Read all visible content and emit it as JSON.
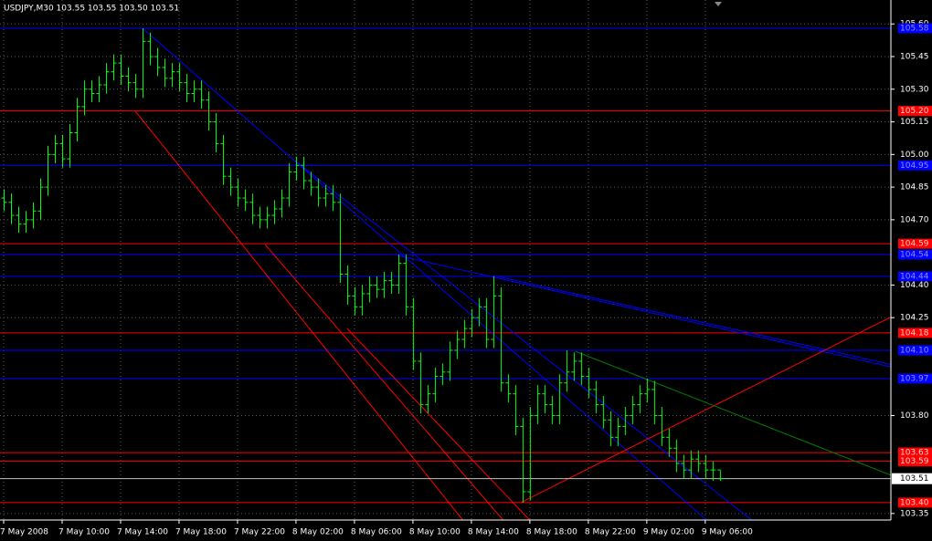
{
  "chart_data": {
    "type": "ohlc",
    "title": "USDJPY,M30  103.55 103.55 103.50 103.51",
    "color": "#00ff00",
    "grid": true,
    "ylim": [
      103.32,
      105.71
    ],
    "xlim": [
      -0.5,
      121.4
    ],
    "yticks": [
      {
        "value": 105.6,
        "label": "105.60"
      },
      {
        "value": 105.45,
        "label": "105.45"
      },
      {
        "value": 105.3,
        "label": "105.30"
      },
      {
        "value": 105.15,
        "label": "105.15"
      },
      {
        "value": 105.0,
        "label": "105.00"
      },
      {
        "value": 104.85,
        "label": "104.85"
      },
      {
        "value": 104.7,
        "label": "104.70"
      },
      {
        "value": 104.4,
        "label": "104.40"
      },
      {
        "value": 104.25,
        "label": "104.25"
      },
      {
        "value": 103.8,
        "label": "103.80"
      },
      {
        "value": 103.35,
        "label": "103.35"
      }
    ],
    "xticks": [
      {
        "value": 0,
        "label": "7 May 2008"
      },
      {
        "value": 8,
        "label": "7 May 10:00"
      },
      {
        "value": 16,
        "label": "7 May 14:00"
      },
      {
        "value": 24,
        "label": "7 May 18:00"
      },
      {
        "value": 32,
        "label": "7 May 22:00"
      },
      {
        "value": 40,
        "label": "8 May 02:00"
      },
      {
        "value": 48,
        "label": "8 May 06:00"
      },
      {
        "value": 56,
        "label": "8 May 10:00"
      },
      {
        "value": 64,
        "label": "8 May 14:00"
      },
      {
        "value": 72,
        "label": "8 May 18:00"
      },
      {
        "value": 80,
        "label": "8 May 22:00"
      },
      {
        "value": 88,
        "label": "9 May 02:00"
      },
      {
        "value": 96,
        "label": "9 May 06:00"
      }
    ],
    "bars": [
      [
        104.8,
        104.84,
        104.74,
        104.78
      ],
      [
        104.78,
        104.82,
        104.68,
        104.72
      ],
      [
        104.72,
        104.76,
        104.64,
        104.68
      ],
      [
        104.68,
        104.74,
        104.64,
        104.7
      ],
      [
        104.7,
        104.78,
        104.66,
        104.74
      ],
      [
        104.74,
        104.89,
        104.7,
        104.85
      ],
      [
        104.85,
        105.04,
        104.81,
        105.0
      ],
      [
        105.0,
        105.09,
        104.96,
        105.05
      ],
      [
        105.05,
        105.09,
        104.94,
        104.98
      ],
      [
        104.98,
        105.14,
        104.94,
        105.1
      ],
      [
        105.1,
        105.26,
        105.06,
        105.22
      ],
      [
        105.22,
        105.34,
        105.18,
        105.3
      ],
      [
        105.3,
        105.34,
        105.24,
        105.28
      ],
      [
        105.28,
        105.36,
        105.24,
        105.32
      ],
      [
        105.32,
        105.42,
        105.28,
        105.38
      ],
      [
        105.38,
        105.46,
        105.34,
        105.42
      ],
      [
        105.42,
        105.46,
        105.32,
        105.36
      ],
      [
        105.36,
        105.4,
        105.29,
        105.33
      ],
      [
        105.33,
        105.37,
        105.26,
        105.3
      ],
      [
        105.3,
        105.58,
        105.26,
        105.52
      ],
      [
        105.52,
        105.56,
        105.41,
        105.45
      ],
      [
        105.45,
        105.49,
        105.36,
        105.4
      ],
      [
        105.4,
        105.44,
        105.31,
        105.35
      ],
      [
        105.35,
        105.42,
        105.31,
        105.38
      ],
      [
        105.38,
        105.42,
        105.29,
        105.33
      ],
      [
        105.33,
        105.37,
        105.24,
        105.28
      ],
      [
        105.28,
        105.34,
        105.24,
        105.3
      ],
      [
        105.3,
        105.34,
        105.21,
        105.25
      ],
      [
        105.25,
        105.29,
        105.11,
        105.15
      ],
      [
        105.15,
        105.19,
        105.01,
        105.05
      ],
      [
        105.05,
        105.09,
        104.86,
        104.9
      ],
      [
        104.9,
        104.94,
        104.81,
        104.85
      ],
      [
        104.85,
        104.89,
        104.76,
        104.8
      ],
      [
        104.8,
        104.84,
        104.74,
        104.78
      ],
      [
        104.78,
        104.82,
        104.68,
        104.72
      ],
      [
        104.72,
        104.76,
        104.66,
        104.7
      ],
      [
        104.7,
        104.76,
        104.66,
        104.72
      ],
      [
        104.72,
        104.79,
        104.68,
        104.75
      ],
      [
        104.75,
        104.84,
        104.71,
        104.8
      ],
      [
        104.8,
        104.96,
        104.76,
        104.92
      ],
      [
        104.92,
        104.99,
        104.88,
        104.95
      ],
      [
        104.95,
        104.99,
        104.84,
        104.88
      ],
      [
        104.88,
        104.92,
        104.81,
        104.85
      ],
      [
        104.85,
        104.89,
        104.76,
        104.8
      ],
      [
        104.8,
        104.86,
        104.76,
        104.82
      ],
      [
        104.82,
        104.86,
        104.74,
        104.78
      ],
      [
        104.78,
        104.82,
        104.41,
        104.45
      ],
      [
        104.45,
        104.49,
        104.31,
        104.35
      ],
      [
        104.35,
        104.39,
        104.26,
        104.3
      ],
      [
        104.3,
        104.4,
        104.26,
        104.36
      ],
      [
        104.36,
        104.44,
        104.32,
        104.4
      ],
      [
        104.4,
        104.44,
        104.34,
        104.38
      ],
      [
        104.38,
        104.46,
        104.34,
        104.42
      ],
      [
        104.42,
        104.46,
        104.36,
        104.4
      ],
      [
        104.4,
        104.54,
        104.36,
        104.5
      ],
      [
        104.5,
        104.54,
        104.26,
        104.3
      ],
      [
        104.3,
        104.34,
        104.01,
        104.05
      ],
      [
        104.05,
        104.09,
        103.81,
        103.85
      ],
      [
        103.85,
        103.94,
        103.81,
        103.9
      ],
      [
        103.9,
        104.02,
        103.86,
        103.98
      ],
      [
        103.98,
        104.04,
        103.94,
        104.0
      ],
      [
        104.0,
        104.14,
        103.96,
        104.1
      ],
      [
        104.1,
        104.19,
        104.06,
        104.15
      ],
      [
        104.15,
        104.24,
        104.11,
        104.2
      ],
      [
        104.2,
        104.29,
        104.16,
        104.25
      ],
      [
        104.25,
        104.34,
        104.21,
        104.3
      ],
      [
        104.3,
        104.34,
        104.11,
        104.15
      ],
      [
        104.15,
        104.44,
        104.11,
        104.35
      ],
      [
        104.35,
        104.39,
        103.91,
        103.95
      ],
      [
        103.95,
        103.99,
        103.86,
        103.9
      ],
      [
        103.9,
        103.94,
        103.71,
        103.75
      ],
      [
        103.75,
        103.79,
        103.4,
        103.45
      ],
      [
        103.45,
        103.84,
        103.41,
        103.8
      ],
      [
        103.8,
        103.94,
        103.76,
        103.9
      ],
      [
        103.9,
        103.94,
        103.81,
        103.85
      ],
      [
        103.85,
        103.89,
        103.76,
        103.8
      ],
      [
        103.8,
        103.99,
        103.76,
        103.95
      ],
      [
        103.95,
        104.1,
        103.91,
        104.0
      ],
      [
        104.0,
        104.09,
        103.96,
        104.05
      ],
      [
        104.05,
        104.09,
        103.94,
        103.98
      ],
      [
        103.98,
        104.02,
        103.88,
        103.92
      ],
      [
        103.92,
        103.96,
        103.81,
        103.85
      ],
      [
        103.85,
        103.89,
        103.74,
        103.78
      ],
      [
        103.78,
        103.82,
        103.66,
        103.7
      ],
      [
        103.7,
        103.79,
        103.66,
        103.75
      ],
      [
        103.75,
        103.84,
        103.71,
        103.8
      ],
      [
        103.8,
        103.89,
        103.76,
        103.85
      ],
      [
        103.85,
        103.94,
        103.81,
        103.9
      ],
      [
        103.9,
        103.97,
        103.86,
        103.92
      ],
      [
        103.92,
        103.96,
        103.76,
        103.8
      ],
      [
        103.8,
        103.84,
        103.66,
        103.7
      ],
      [
        103.7,
        103.74,
        103.61,
        103.65
      ],
      [
        103.65,
        103.69,
        103.54,
        103.58
      ],
      [
        103.58,
        103.62,
        103.51,
        103.55
      ],
      [
        103.55,
        103.64,
        103.51,
        103.6
      ],
      [
        103.6,
        103.64,
        103.54,
        103.58
      ],
      [
        103.58,
        103.62,
        103.51,
        103.55
      ],
      [
        103.55,
        103.59,
        103.5,
        103.55
      ],
      [
        103.55,
        103.55,
        103.5,
        103.51
      ]
    ],
    "levels": [
      {
        "value": 105.58,
        "label": "105.58",
        "color": "#0000ff"
      },
      {
        "value": 105.2,
        "label": "105.20",
        "color": "#ff0000"
      },
      {
        "value": 104.95,
        "label": "104.95",
        "color": "#0000ff"
      },
      {
        "value": 104.59,
        "label": "104.59",
        "color": "#ff0000"
      },
      {
        "value": 104.54,
        "label": "104.54",
        "color": "#0000ff"
      },
      {
        "value": 104.44,
        "label": "104.44",
        "color": "#0000ff"
      },
      {
        "value": 104.18,
        "label": "104.18",
        "color": "#ff0000"
      },
      {
        "value": 104.1,
        "label": "104.10",
        "color": "#0000ff"
      },
      {
        "value": 103.97,
        "label": "103.97",
        "color": "#0000ff"
      },
      {
        "value": 103.63,
        "label": "103.63",
        "color": "#ff0000"
      },
      {
        "value": 103.59,
        "label": "103.59",
        "color": "#ff0000"
      },
      {
        "value": 103.4,
        "label": "103.40",
        "color": "#ff0000"
      }
    ],
    "current": {
      "value": 103.51,
      "label": "103.51",
      "color": "#c0c0c0"
    },
    "trendlines": [
      {
        "color": "#0000ff",
        "points": [
          [
            19,
            105.58
          ],
          [
            97,
            103.296
          ]
        ]
      },
      {
        "color": "#0000ff",
        "points": [
          [
            40.1,
            104.965
          ],
          [
            103.25,
            103.296
          ]
        ]
      },
      {
        "color": "#0000ff",
        "points": [
          [
            53.9,
            104.536
          ],
          [
            122,
            104.019
          ]
        ]
      },
      {
        "color": "#0000ff",
        "points": [
          [
            67,
            104.444
          ],
          [
            122,
            104.031
          ]
        ]
      },
      {
        "color": "#ff0000",
        "points": [
          [
            18,
            105.2
          ],
          [
            63.9,
            103.275
          ]
        ]
      },
      {
        "color": "#ff0000",
        "points": [
          [
            35.75,
            104.587
          ],
          [
            69.5,
            103.275
          ]
        ]
      },
      {
        "color": "#ff0000",
        "points": [
          [
            47,
            104.2
          ],
          [
            73.25,
            103.275
          ]
        ]
      },
      {
        "color": "#ff0000",
        "points": [
          [
            70.75,
            103.4
          ],
          [
            122,
            104.263
          ]
        ]
      },
      {
        "color": "#008000",
        "points": [
          [
            78.25,
            104.095
          ],
          [
            122,
            103.518
          ]
        ]
      }
    ]
  }
}
